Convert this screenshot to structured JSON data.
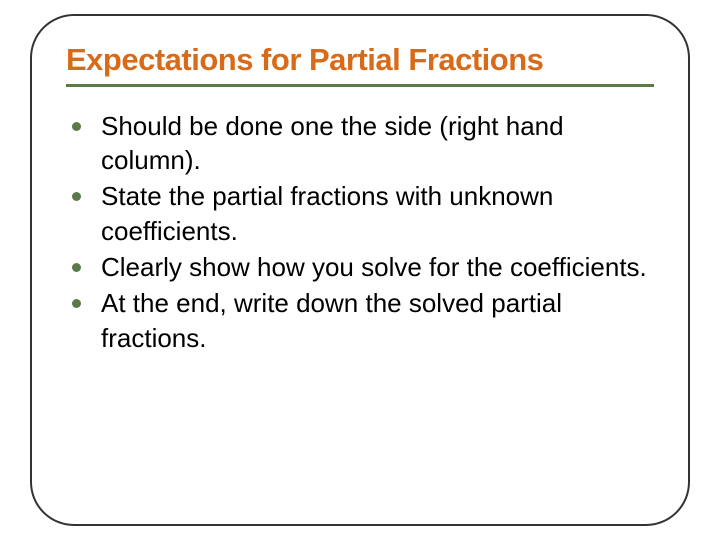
{
  "slide": {
    "title": "Expectations for Partial Fractions",
    "title_color": "#d86b1a",
    "underline_color": "#5a7a4a",
    "bullet_color": "#5a7a4a",
    "text_color": "#000000",
    "frame_border_color": "#333333",
    "frame_border_radius": 44,
    "background_color": "#ffffff",
    "title_fontsize": 31,
    "body_fontsize": 26,
    "bullets": [
      "Should be done one the side (right hand column).",
      "State the partial fractions with unknown coefficients.",
      "Clearly show how you solve for the coefficients.",
      "At the end, write down the solved partial fractions."
    ]
  }
}
